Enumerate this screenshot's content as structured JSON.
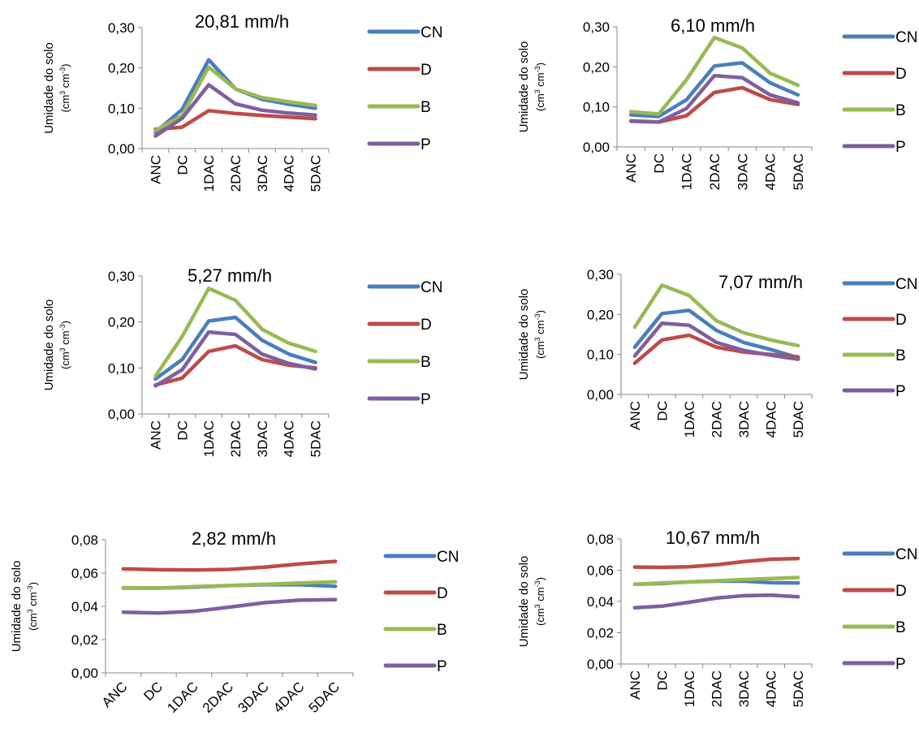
{
  "colors": {
    "CN": "#4a7ebb",
    "D": "#be4b48",
    "B": "#98b954",
    "P": "#7d60a0"
  },
  "categories": [
    "ANC",
    "DC",
    "1DAC",
    "2DAC",
    "3DAC",
    "4DAC",
    "5DAC"
  ],
  "ylabel_line1": "Umidade do solo",
  "ylabel_line2_prefix": "(cm",
  "ylabel_line2_mid": " cm",
  "ylabel_line2_suffix": ")",
  "ylabel_sup1": "3",
  "ylabel_sup2": "-3",
  "chart_data": [
    {
      "type": "line",
      "title": "20,81 mm/h",
      "ylim": [
        0,
        0.3
      ],
      "yticks": [
        "0,00",
        "0,10",
        "0,20",
        "0,30"
      ],
      "categories": [
        "ANC",
        "DC",
        "1DAC",
        "2DAC",
        "3DAC",
        "4DAC",
        "5DAC"
      ],
      "series": [
        {
          "name": "CN",
          "values": [
            0.04,
            0.097,
            0.22,
            0.148,
            0.122,
            0.11,
            0.1
          ]
        },
        {
          "name": "D",
          "values": [
            0.048,
            0.053,
            0.094,
            0.087,
            0.082,
            0.078,
            0.074
          ]
        },
        {
          "name": "B",
          "values": [
            0.045,
            0.082,
            0.202,
            0.148,
            0.126,
            0.116,
            0.107
          ]
        },
        {
          "name": "P",
          "values": [
            0.031,
            0.075,
            0.158,
            0.111,
            0.095,
            0.088,
            0.083
          ]
        }
      ]
    },
    {
      "type": "line",
      "title": "6,10 mm/h",
      "ylim": [
        0,
        0.3
      ],
      "yticks": [
        "0,00",
        "0,10",
        "0,20",
        "0,30"
      ],
      "categories": [
        "ANC",
        "DC",
        "1DAC",
        "2DAC",
        "3DAC",
        "4DAC",
        "5DAC"
      ],
      "series": [
        {
          "name": "CN",
          "values": [
            0.08,
            0.076,
            0.118,
            0.202,
            0.21,
            0.16,
            0.13
          ]
        },
        {
          "name": "D",
          "values": [
            0.065,
            0.062,
            0.078,
            0.136,
            0.148,
            0.118,
            0.106
          ]
        },
        {
          "name": "B",
          "values": [
            0.088,
            0.082,
            0.168,
            0.273,
            0.247,
            0.184,
            0.154
          ]
        },
        {
          "name": "P",
          "values": [
            0.064,
            0.062,
            0.096,
            0.178,
            0.173,
            0.13,
            0.11
          ]
        }
      ]
    },
    {
      "type": "line",
      "title": "5,27 mm/h",
      "ylim": [
        0,
        0.3
      ],
      "yticks": [
        "0,00",
        "0,10",
        "0,20",
        "0,30"
      ],
      "categories": [
        "ANC",
        "DC",
        "1DAC",
        "2DAC",
        "3DAC",
        "4DAC",
        "5DAC"
      ],
      "series": [
        {
          "name": "CN",
          "values": [
            0.076,
            0.118,
            0.202,
            0.21,
            0.16,
            0.13,
            0.112
          ]
        },
        {
          "name": "D",
          "values": [
            0.063,
            0.078,
            0.136,
            0.148,
            0.118,
            0.106,
            0.1
          ]
        },
        {
          "name": "B",
          "values": [
            0.082,
            0.168,
            0.273,
            0.247,
            0.184,
            0.154,
            0.136
          ]
        },
        {
          "name": "P",
          "values": [
            0.061,
            0.096,
            0.178,
            0.173,
            0.13,
            0.11,
            0.098
          ]
        }
      ]
    },
    {
      "type": "line",
      "title": "7,07 mm/h",
      "ylim": [
        0,
        0.3
      ],
      "yticks": [
        "0,00",
        "0,10",
        "0,20",
        "0,30"
      ],
      "categories": [
        "ANC",
        "DC",
        "1DAC",
        "2DAC",
        "3DAC",
        "4DAC",
        "5DAC"
      ],
      "series": [
        {
          "name": "CN",
          "values": [
            0.118,
            0.202,
            0.21,
            0.16,
            0.13,
            0.112,
            0.092
          ]
        },
        {
          "name": "D",
          "values": [
            0.078,
            0.136,
            0.148,
            0.118,
            0.106,
            0.1,
            0.094
          ]
        },
        {
          "name": "B",
          "values": [
            0.168,
            0.273,
            0.247,
            0.184,
            0.154,
            0.136,
            0.122
          ]
        },
        {
          "name": "P",
          "values": [
            0.096,
            0.178,
            0.173,
            0.13,
            0.11,
            0.098,
            0.088
          ]
        }
      ]
    },
    {
      "type": "line",
      "title": "2,82 mm/h",
      "ylim": [
        0,
        0.08
      ],
      "yticks": [
        "0,00",
        "0,02",
        "0,04",
        "0,06",
        "0,08"
      ],
      "categories": [
        "ANC",
        "DC",
        "1DAC",
        "2DAC",
        "3DAC",
        "4DAC",
        "5DAC"
      ],
      "series": [
        {
          "name": "CN",
          "values": [
            0.051,
            0.051,
            0.0515,
            0.0525,
            0.053,
            0.053,
            0.052
          ]
        },
        {
          "name": "D",
          "values": [
            0.0625,
            0.062,
            0.0618,
            0.0622,
            0.0635,
            0.0655,
            0.067
          ]
        },
        {
          "name": "B",
          "values": [
            0.0512,
            0.051,
            0.0518,
            0.0525,
            0.0532,
            0.054,
            0.0547
          ]
        },
        {
          "name": "P",
          "values": [
            0.0365,
            0.036,
            0.037,
            0.0395,
            0.0422,
            0.0437,
            0.044
          ]
        }
      ]
    },
    {
      "type": "line",
      "title": "10,67 mm/h",
      "ylim": [
        0,
        0.08
      ],
      "yticks": [
        "0,00",
        "0,02",
        "0,04",
        "0,06",
        "0,08"
      ],
      "categories": [
        "ANC",
        "DC",
        "1DAC",
        "2DAC",
        "3DAC",
        "4DAC",
        "5DAC"
      ],
      "series": [
        {
          "name": "CN",
          "values": [
            0.051,
            0.0515,
            0.0525,
            0.053,
            0.053,
            0.052,
            0.0518
          ]
        },
        {
          "name": "D",
          "values": [
            0.062,
            0.0618,
            0.0622,
            0.0635,
            0.0655,
            0.067,
            0.0675
          ]
        },
        {
          "name": "B",
          "values": [
            0.051,
            0.0518,
            0.0525,
            0.0532,
            0.054,
            0.0547,
            0.0553
          ]
        },
        {
          "name": "P",
          "values": [
            0.036,
            0.037,
            0.0395,
            0.0422,
            0.0437,
            0.044,
            0.043
          ]
        }
      ]
    }
  ]
}
